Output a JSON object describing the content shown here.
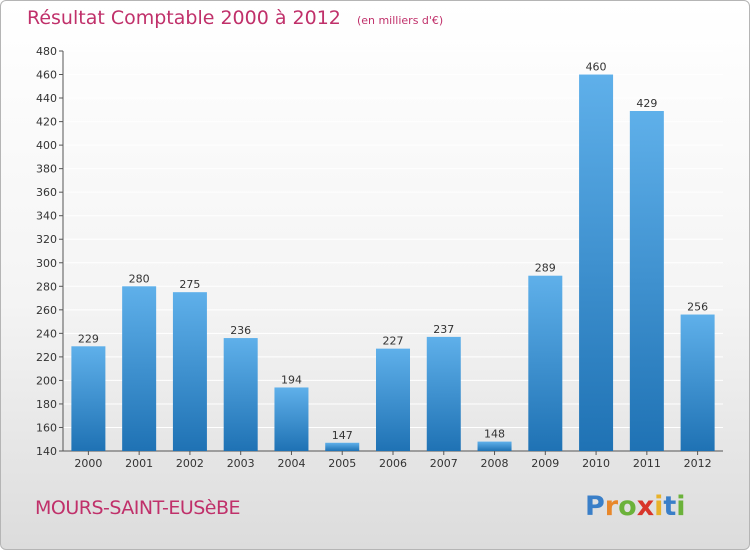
{
  "header": {
    "title": "Résultat Comptable 2000 à 2012",
    "subtitle": "(en milliers d'€)"
  },
  "footer": {
    "commune": "MOURS-SAINT-EUSèBE",
    "logo_letters": [
      "P",
      "r",
      "o",
      "x",
      "i",
      "t",
      "i"
    ],
    "logo_colors": [
      "#3a7fc8",
      "#e8872a",
      "#6bb23a",
      "#d8352a",
      "#e8b22a",
      "#3a7fc8",
      "#6bb23a"
    ]
  },
  "colors": {
    "bar_light": "#5fb0ea",
    "bar_dark": "#1f72b4",
    "grid": "#ffffff",
    "axis": "#555555"
  },
  "chart_data": {
    "type": "bar",
    "categories": [
      "2000",
      "2001",
      "2002",
      "2003",
      "2004",
      "2005",
      "2006",
      "2007",
      "2008",
      "2009",
      "2010",
      "2011",
      "2012"
    ],
    "values": [
      229,
      280,
      275,
      236,
      194,
      147,
      227,
      237,
      148,
      289,
      460,
      429,
      256
    ],
    "title": "Résultat Comptable 2000 à 2012",
    "ylim": [
      140,
      480
    ],
    "yticks": [
      140,
      160,
      180,
      200,
      220,
      240,
      260,
      280,
      300,
      320,
      340,
      360,
      380,
      400,
      420,
      440,
      460,
      480
    ],
    "grid": true
  }
}
